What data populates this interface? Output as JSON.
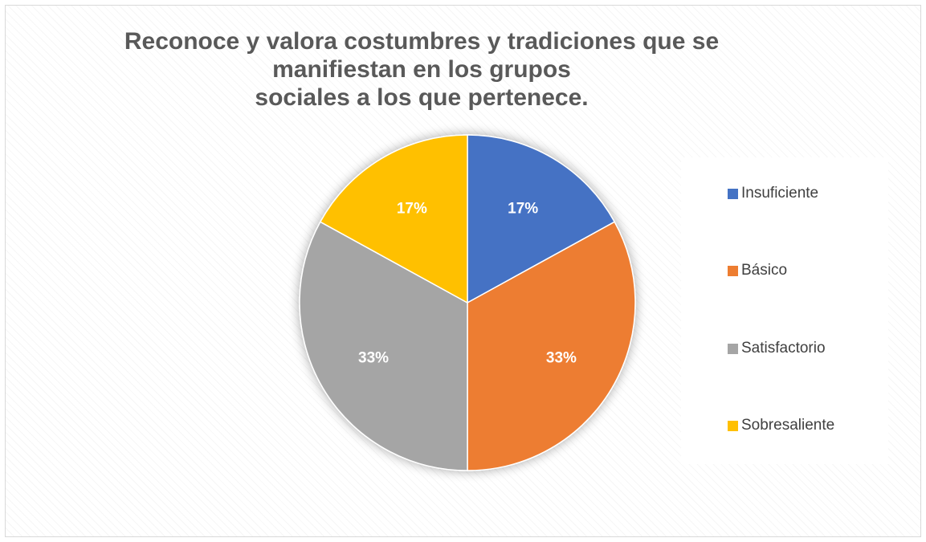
{
  "chart_data": {
    "type": "pie",
    "title_lines": [
      "Reconoce y valora costumbres y tradiciones que se",
      "manifiestan en los grupos",
      "sociales a los que pertenece."
    ],
    "categories": [
      "Insuficiente",
      "Básico",
      "Satisfactorio",
      "Sobresaliente"
    ],
    "values": [
      17,
      33,
      33,
      17
    ],
    "labels": [
      "17%",
      "33%",
      "33%",
      "17%"
    ],
    "colors": [
      "#4472c4",
      "#ed7d31",
      "#a5a5a5",
      "#ffc000"
    ],
    "legend_position": "right"
  }
}
